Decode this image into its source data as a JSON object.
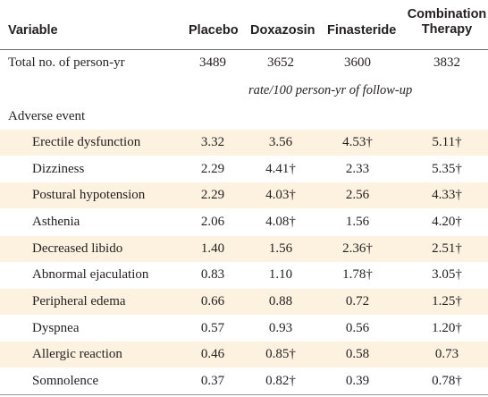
{
  "header": {
    "variable": "Variable",
    "placebo": "Placebo",
    "doxazosin": "Doxazosin",
    "finasteride": "Finasteride",
    "combination_line1": "Combination",
    "combination_line2": "Therapy"
  },
  "total_row": {
    "label": "Total no. of person-yr",
    "placebo": "3489",
    "doxazosin": "3652",
    "finasteride": "3600",
    "combination": "3832"
  },
  "rate_note": "rate/100 person-yr of follow-up",
  "section_label": "Adverse event",
  "rows": [
    {
      "label": "Erectile dysfunction",
      "placebo": "3.32",
      "doxazosin": "3.56",
      "finasteride": "4.53†",
      "combination": "5.11†"
    },
    {
      "label": "Dizziness",
      "placebo": "2.29",
      "doxazosin": "4.41†",
      "finasteride": "2.33",
      "combination": "5.35†"
    },
    {
      "label": "Postural hypotension",
      "placebo": "2.29",
      "doxazosin": "4.03†",
      "finasteride": "2.56",
      "combination": "4.33†"
    },
    {
      "label": "Asthenia",
      "placebo": "2.06",
      "doxazosin": "4.08†",
      "finasteride": "1.56",
      "combination": "4.20†"
    },
    {
      "label": "Decreased libido",
      "placebo": "1.40",
      "doxazosin": "1.56",
      "finasteride": "2.36†",
      "combination": "2.51†"
    },
    {
      "label": "Abnormal ejaculation",
      "placebo": "0.83",
      "doxazosin": "1.10",
      "finasteride": "1.78†",
      "combination": "3.05†"
    },
    {
      "label": "Peripheral edema",
      "placebo": "0.66",
      "doxazosin": "0.88",
      "finasteride": "0.72",
      "combination": "1.25†"
    },
    {
      "label": "Dyspnea",
      "placebo": "0.57",
      "doxazosin": "0.93",
      "finasteride": "0.56",
      "combination": "1.20†"
    },
    {
      "label": "Allergic reaction",
      "placebo": "0.46",
      "doxazosin": "0.85†",
      "finasteride": "0.58",
      "combination": "0.73"
    },
    {
      "label": "Somnolence",
      "placebo": "0.37",
      "doxazosin": "0.82†",
      "finasteride": "0.39",
      "combination": "0.78†"
    }
  ],
  "colors": {
    "shade": "#fdf2df",
    "text": "#231f20",
    "rule": "#6b6b6b"
  }
}
